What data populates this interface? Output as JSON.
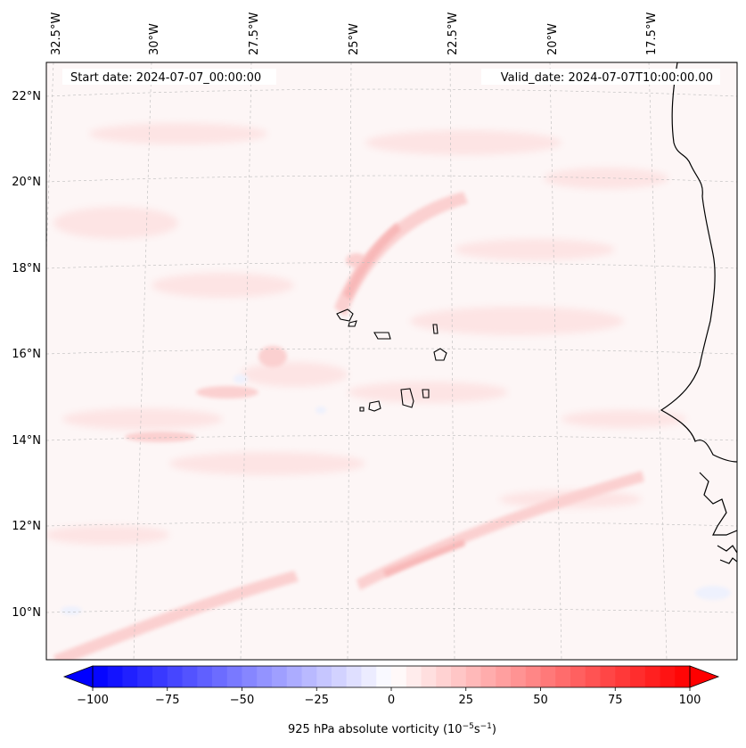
{
  "header": {
    "start_date": "Start date: 2024-07-07_00:00:00",
    "valid_date": "Valid_date: 2024-07-07T10:00:00.00"
  },
  "map": {
    "lon_labels": [
      "32.5°W",
      "30°W",
      "27.5°W",
      "25°W",
      "22.5°W",
      "20°W",
      "17.5°W"
    ],
    "lat_labels": [
      "22°N",
      "20°N",
      "18°N",
      "16°N",
      "14°N",
      "12°N",
      "10°N"
    ],
    "field_colors": {
      "background": "#fdf6f6",
      "light_pink": "#fde4e4",
      "pink": "#fbd0d0",
      "medium_pink": "#f8b8b8",
      "light_blue": "#eef1fd"
    }
  },
  "colorbar": {
    "label_prefix": "925 hPa absolute vorticity (10",
    "label_exp1": "−5",
    "label_mid": "s",
    "label_exp2": "−1",
    "label_suffix": ")",
    "ticks": [
      "−100",
      "−75",
      "−50",
      "−25",
      "0",
      "25",
      "50",
      "75",
      "100"
    ],
    "min_color": "#0000ff",
    "mid_color": "#ffffff",
    "max_color": "#ff0000"
  }
}
